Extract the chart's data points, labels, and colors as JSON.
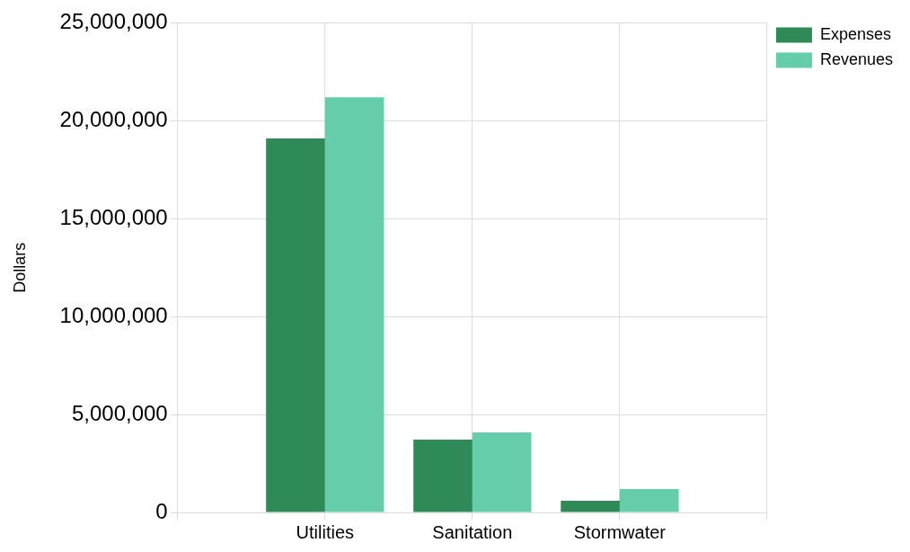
{
  "chart_data": {
    "type": "bar",
    "ylabel": "Dollars",
    "categories": [
      "Utilities",
      "Sanitation",
      "Stormwater"
    ],
    "series": [
      {
        "name": "Expenses",
        "color": "#2e8b57",
        "values": [
          19100000,
          3720000,
          600000
        ]
      },
      {
        "name": "Revenues",
        "color": "#66cdaa",
        "values": [
          21200000,
          4080000,
          1190000
        ]
      }
    ],
    "ylim": [
      0,
      25000000
    ],
    "yticks": [
      0,
      {
        "value": 5000000,
        "label": "5,000,000"
      },
      {
        "value": 10000000,
        "label": "10,000,000"
      },
      {
        "value": 15000000,
        "label": "15,000,000"
      },
      {
        "value": 20000000,
        "label": "20,000,000"
      },
      {
        "value": 25000000,
        "label": "25,000,000"
      }
    ],
    "grid": true,
    "legend": "top right"
  }
}
